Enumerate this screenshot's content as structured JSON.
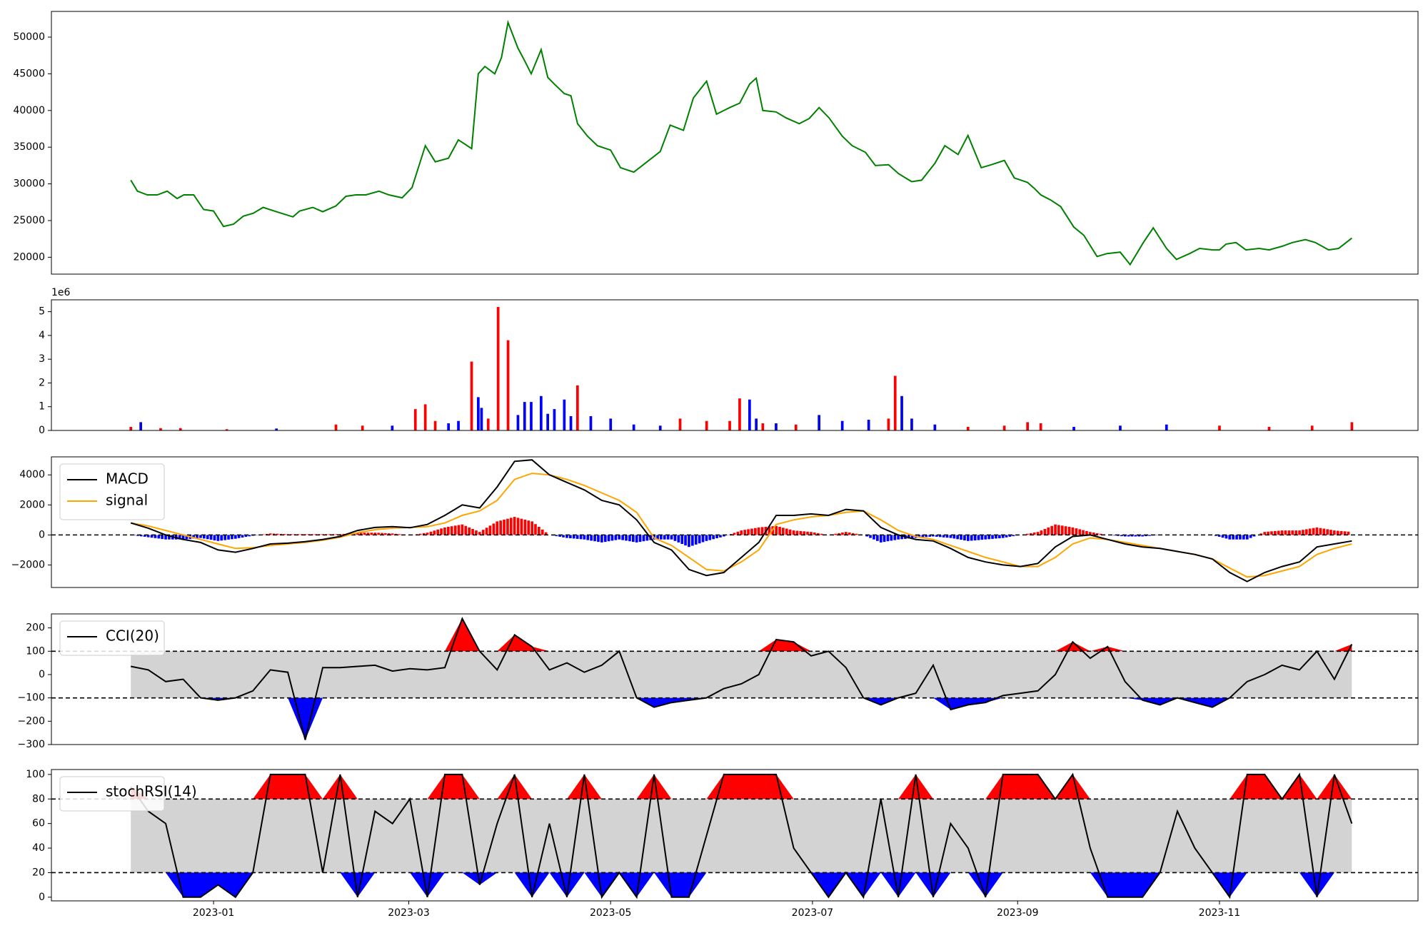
{
  "chart_data": [
    {
      "panel": "price",
      "type": "line",
      "color": "#008000",
      "ylim": [
        17700,
        53500
      ],
      "yticks": [
        20000,
        25000,
        30000,
        35000,
        40000,
        45000,
        50000
      ],
      "ytick_labels": [
        "20000",
        "25000",
        "30000",
        "35000",
        "40000",
        "45000",
        "50000"
      ],
      "x": [
        "2022-12-07",
        "2022-12-09",
        "2022-12-12",
        "2022-12-15",
        "2022-12-18",
        "2022-12-21",
        "2022-12-23",
        "2022-12-26",
        "2022-12-29",
        "2023-01-01",
        "2023-01-04",
        "2023-01-07",
        "2023-01-10",
        "2023-01-13",
        "2023-01-16",
        "2023-01-20",
        "2023-01-25",
        "2023-01-27",
        "2023-01-31",
        "2023-02-03",
        "2023-02-07",
        "2023-02-10",
        "2023-02-13",
        "2023-02-16",
        "2023-02-20",
        "2023-02-23",
        "2023-02-27",
        "2023-03-02",
        "2023-03-06",
        "2023-03-09",
        "2023-03-13",
        "2023-03-16",
        "2023-03-20",
        "2023-03-22",
        "2023-03-24",
        "2023-03-27",
        "2023-03-29",
        "2023-03-31",
        "2023-04-03",
        "2023-04-05",
        "2023-04-07",
        "2023-04-10",
        "2023-04-12",
        "2023-04-14",
        "2023-04-17",
        "2023-04-19",
        "2023-04-21",
        "2023-04-24",
        "2023-04-27",
        "2023-05-01",
        "2023-05-04",
        "2023-05-08",
        "2023-05-12",
        "2023-05-16",
        "2023-05-19",
        "2023-05-23",
        "2023-05-26",
        "2023-05-30",
        "2023-06-02",
        "2023-06-06",
        "2023-06-09",
        "2023-06-12",
        "2023-06-14",
        "2023-06-16",
        "2023-06-20",
        "2023-06-23",
        "2023-06-27",
        "2023-06-30",
        "2023-07-03",
        "2023-07-06",
        "2023-07-10",
        "2023-07-13",
        "2023-07-17",
        "2023-07-20",
        "2023-07-24",
        "2023-07-27",
        "2023-07-31",
        "2023-08-03",
        "2023-08-07",
        "2023-08-10",
        "2023-08-14",
        "2023-08-17",
        "2023-08-21",
        "2023-08-24",
        "2023-08-28",
        "2023-08-31",
        "2023-09-04",
        "2023-09-06",
        "2023-09-08",
        "2023-09-11",
        "2023-09-14",
        "2023-09-18",
        "2023-09-21",
        "2023-09-25",
        "2023-09-28",
        "2023-10-02",
        "2023-10-05",
        "2023-10-09",
        "2023-10-12",
        "2023-10-16",
        "2023-10-19",
        "2023-10-23",
        "2023-10-26",
        "2023-10-30",
        "2023-11-01",
        "2023-11-03",
        "2023-11-06",
        "2023-11-09",
        "2023-11-13",
        "2023-11-16",
        "2023-11-20",
        "2023-11-23",
        "2023-11-27",
        "2023-11-30",
        "2023-12-04",
        "2023-12-07",
        "2023-12-11"
      ],
      "y": [
        30500,
        29000,
        28500,
        28500,
        29000,
        28000,
        28500,
        28500,
        26500,
        26300,
        24200,
        24500,
        25600,
        26000,
        26800,
        26200,
        25500,
        26300,
        26800,
        26200,
        27000,
        28300,
        28500,
        28500,
        29000,
        28500,
        28100,
        29500,
        35200,
        33000,
        33500,
        36000,
        34800,
        45000,
        46000,
        45000,
        47200,
        52000,
        48500,
        46800,
        45000,
        48300,
        44500,
        43600,
        42300,
        42000,
        38200,
        36500,
        35200,
        34600,
        32200,
        31600,
        33000,
        34400,
        38000,
        37300,
        41700,
        44000,
        39500,
        40400,
        41000,
        43600,
        44400,
        40000,
        39800,
        39000,
        38200,
        38900,
        40400,
        39000,
        36500,
        35200,
        34300,
        32500,
        32600,
        31400,
        30300,
        30500,
        32800,
        35200,
        34000,
        36600,
        32200,
        32600,
        33200,
        30800,
        30200,
        29400,
        28500,
        27800,
        26900,
        24100,
        23000,
        20100,
        20500,
        20700,
        19000,
        22000,
        24000,
        21200,
        19700,
        20500,
        21200,
        21000,
        21000,
        21800,
        22000,
        21000,
        21200,
        21000,
        21500,
        22000,
        22400,
        22000,
        21000,
        21200,
        22600
      ]
    },
    {
      "panel": "volume",
      "type": "bar",
      "offset_text": "1e6",
      "ylim": [
        0,
        5.5
      ],
      "yticks": [
        0,
        1,
        2,
        3,
        4,
        5
      ],
      "ytick_labels": [
        "0",
        "1",
        "2",
        "3",
        "4",
        "5"
      ],
      "colors": {
        "up": "#ff0000",
        "down": "#0000ff"
      },
      "x": [
        "2022-12-07",
        "2022-12-10",
        "2022-12-16",
        "2022-12-22",
        "2023-01-05",
        "2023-01-20",
        "2023-02-07",
        "2023-02-15",
        "2023-02-24",
        "2023-03-03",
        "2023-03-06",
        "2023-03-09",
        "2023-03-13",
        "2023-03-16",
        "2023-03-20",
        "2023-03-22",
        "2023-03-23",
        "2023-03-25",
        "2023-03-28",
        "2023-03-31",
        "2023-04-03",
        "2023-04-05",
        "2023-04-07",
        "2023-04-10",
        "2023-04-12",
        "2023-04-14",
        "2023-04-17",
        "2023-04-19",
        "2023-04-21",
        "2023-04-25",
        "2023-05-01",
        "2023-05-08",
        "2023-05-16",
        "2023-05-22",
        "2023-05-30",
        "2023-06-06",
        "2023-06-09",
        "2023-06-12",
        "2023-06-14",
        "2023-06-16",
        "2023-06-20",
        "2023-06-26",
        "2023-07-03",
        "2023-07-10",
        "2023-07-18",
        "2023-07-24",
        "2023-07-26",
        "2023-07-28",
        "2023-07-31",
        "2023-08-07",
        "2023-08-17",
        "2023-08-28",
        "2023-09-04",
        "2023-09-08",
        "2023-09-18",
        "2023-10-02",
        "2023-10-16",
        "2023-11-01",
        "2023-11-16",
        "2023-11-29",
        "2023-12-11"
      ],
      "values": [
        0.15,
        0.35,
        0.1,
        0.1,
        0.05,
        0.08,
        0.25,
        0.2,
        0.2,
        0.9,
        1.1,
        0.4,
        0.3,
        0.4,
        2.9,
        1.4,
        0.95,
        0.5,
        5.2,
        3.8,
        0.65,
        1.2,
        1.2,
        1.45,
        0.7,
        0.9,
        1.3,
        0.6,
        1.9,
        0.6,
        0.5,
        0.25,
        0.2,
        0.5,
        0.4,
        0.4,
        1.35,
        1.3,
        0.5,
        0.3,
        0.3,
        0.25,
        0.65,
        0.4,
        0.45,
        0.5,
        2.3,
        1.45,
        0.5,
        0.25,
        0.15,
        0.2,
        0.35,
        0.3,
        0.15,
        0.2,
        0.25,
        0.2,
        0.15,
        0.2,
        0.35
      ],
      "up": [
        true,
        false,
        true,
        true,
        true,
        false,
        true,
        true,
        false,
        true,
        true,
        true,
        false,
        false,
        true,
        false,
        false,
        true,
        true,
        true,
        false,
        false,
        false,
        false,
        false,
        false,
        false,
        false,
        true,
        false,
        false,
        false,
        false,
        true,
        true,
        true,
        true,
        false,
        false,
        true,
        false,
        true,
        false,
        false,
        false,
        true,
        true,
        false,
        false,
        false,
        true,
        true,
        true,
        true,
        false,
        false,
        false,
        true,
        true,
        true,
        true
      ]
    },
    {
      "panel": "macd",
      "type": "line",
      "ylim": [
        -3500,
        5200
      ],
      "yticks": [
        -2000,
        0,
        2000,
        4000
      ],
      "ytick_labels": [
        "−2000",
        "0",
        "2000",
        "4000"
      ],
      "hline": 0,
      "series": [
        {
          "name": "MACD",
          "color": "#000000",
          "values": [
            800,
            450,
            0,
            -300,
            -500,
            -1000,
            -1150,
            -900,
            -600,
            -550,
            -450,
            -300,
            -100,
            300,
            500,
            550,
            480,
            700,
            1300,
            2000,
            1800,
            3200,
            4900,
            5000,
            4000,
            3500,
            3000,
            2300,
            2000,
            1000,
            -500,
            -1000,
            -2300,
            -2700,
            -2500,
            -1500,
            -500,
            1300,
            1300,
            1400,
            1300,
            1700,
            1600,
            500,
            0,
            -300,
            -400,
            -900,
            -1500,
            -1800,
            -2000,
            -2100,
            -1900,
            -800,
            -100,
            0,
            -300,
            -600,
            -800,
            -900,
            -1100,
            -1300,
            -1600,
            -2500,
            -3100,
            -2500,
            -2100,
            -1800,
            -800,
            -600,
            -400
          ]
        },
        {
          "name": "signal",
          "color": "#ffa500",
          "values": [
            800,
            600,
            300,
            0,
            -300,
            -600,
            -900,
            -850,
            -700,
            -600,
            -500,
            -350,
            -150,
            150,
            350,
            450,
            500,
            550,
            800,
            1300,
            1600,
            2300,
            3700,
            4100,
            4000,
            3700,
            3300,
            2800,
            2300,
            1500,
            -200,
            -700,
            -1500,
            -2300,
            -2400,
            -1800,
            -1000,
            700,
            1000,
            1200,
            1300,
            1500,
            1600,
            1000,
            300,
            -100,
            -300,
            -700,
            -1100,
            -1500,
            -1800,
            -2100,
            -2100,
            -1500,
            -600,
            -200,
            -300,
            -500,
            -700,
            -900,
            -1100,
            -1300,
            -1600,
            -2200,
            -2800,
            -2700,
            -2400,
            -2100,
            -1300,
            -900,
            -600
          ]
        }
      ],
      "histogram_colors": {
        "positive": "#ff0000",
        "negative": "#0000ff"
      }
    },
    {
      "panel": "cci",
      "type": "line",
      "ylim": [
        -300,
        260
      ],
      "yticks": [
        -300,
        -200,
        -100,
        0,
        100,
        200
      ],
      "ytick_labels": [
        "−300",
        "−200",
        "−100",
        "0",
        "100",
        "200"
      ],
      "bands": [
        100,
        -100
      ],
      "fill_colors": {
        "above": "#ff0000",
        "below": "#0000ff",
        "band": "#d3d3d3"
      },
      "series": [
        {
          "name": "CCI(20)",
          "color": "#000000",
          "values": [
            35,
            20,
            -30,
            -20,
            -100,
            -110,
            -100,
            -70,
            20,
            10,
            -280,
            30,
            30,
            35,
            40,
            15,
            25,
            20,
            30,
            240,
            100,
            20,
            170,
            120,
            20,
            50,
            10,
            40,
            100,
            -100,
            -140,
            -120,
            -110,
            -100,
            -60,
            -40,
            0,
            150,
            140,
            80,
            100,
            30,
            -100,
            -130,
            -100,
            -80,
            40,
            -150,
            -130,
            -120,
            -90,
            -80,
            -70,
            0,
            140,
            70,
            120,
            -30,
            -110,
            -130,
            -100,
            -120,
            -140,
            -100,
            -30,
            0,
            40,
            20,
            100,
            -20,
            130
          ]
        }
      ]
    },
    {
      "panel": "stochrsi",
      "type": "line",
      "ylim": [
        -3,
        104
      ],
      "yticks": [
        0,
        20,
        40,
        60,
        80,
        100
      ],
      "ytick_labels": [
        "0",
        "20",
        "40",
        "60",
        "80",
        "100"
      ],
      "bands": [
        80,
        20
      ],
      "fill_colors": {
        "above": "#ff0000",
        "below": "#0000ff",
        "band": "#d3d3d3"
      },
      "series": [
        {
          "name": "stochRSI(14)",
          "color": "#000000",
          "values": [
            90,
            70,
            60,
            0,
            0,
            10,
            0,
            20,
            100,
            100,
            100,
            20,
            100,
            0,
            70,
            60,
            80,
            0,
            100,
            100,
            10,
            60,
            100,
            0,
            60,
            0,
            100,
            0,
            20,
            0,
            100,
            0,
            0,
            50,
            100,
            100,
            100,
            100,
            40,
            20,
            0,
            20,
            0,
            80,
            0,
            100,
            0,
            60,
            40,
            0,
            100,
            100,
            100,
            80,
            100,
            40,
            0,
            0,
            0,
            20,
            70,
            40,
            20,
            0,
            100,
            100,
            80,
            100,
            0,
            100,
            60
          ]
        }
      ]
    }
  ],
  "x_axis": {
    "ticks": [
      "2023-01-01",
      "2023-03-01",
      "2023-05-01",
      "2023-07-01",
      "2023-09-01",
      "2023-11-01"
    ],
    "tick_labels": [
      "2023-01",
      "2023-03",
      "2023-05",
      "2023-07",
      "2023-09",
      "2023-11"
    ]
  }
}
